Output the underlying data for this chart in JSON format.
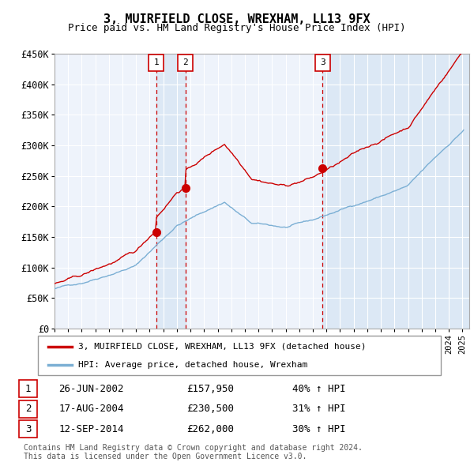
{
  "title": "3, MUIRFIELD CLOSE, WREXHAM, LL13 9FX",
  "subtitle": "Price paid vs. HM Land Registry's House Price Index (HPI)",
  "ylim": [
    0,
    450000
  ],
  "yticks": [
    0,
    50000,
    100000,
    150000,
    200000,
    250000,
    300000,
    350000,
    400000,
    450000
  ],
  "ytick_labels": [
    "£0",
    "£50K",
    "£100K",
    "£150K",
    "£200K",
    "£250K",
    "£300K",
    "£350K",
    "£400K",
    "£450K"
  ],
  "background_color": "#ffffff",
  "plot_bg_color": "#eef3fb",
  "grid_color": "#ffffff",
  "sale_events": [
    {
      "label": "1",
      "date_str": "26-JUN-2002",
      "price": 157950,
      "pct": "40%",
      "x_year": 2002.48
    },
    {
      "label": "2",
      "date_str": "17-AUG-2004",
      "price": 230500,
      "pct": "31%",
      "x_year": 2004.62
    },
    {
      "label": "3",
      "date_str": "12-SEP-2014",
      "price": 262000,
      "pct": "30%",
      "x_year": 2014.7
    }
  ],
  "legend_line1": "3, MUIRFIELD CLOSE, WREXHAM, LL13 9FX (detached house)",
  "legend_line2": "HPI: Average price, detached house, Wrexham",
  "footer": "Contains HM Land Registry data © Crown copyright and database right 2024.\nThis data is licensed under the Open Government Licence v3.0.",
  "red_line_color": "#cc0000",
  "blue_line_color": "#7bafd4",
  "highlight_color": "#dce8f5",
  "marker_box_color": "#cc0000",
  "dashed_line_color": "#cc0000",
  "xmin": 1995,
  "xmax": 2025.5
}
